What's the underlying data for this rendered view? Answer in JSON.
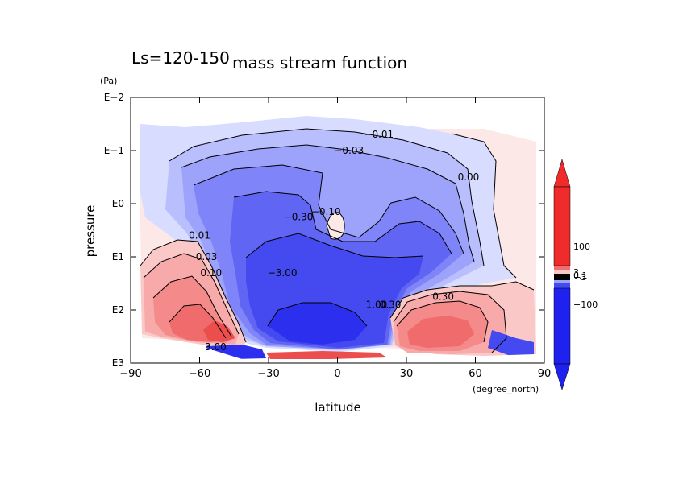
{
  "chart_data": {
    "type": "contour",
    "title": "mass stream function",
    "subtitle": "Ls=120-150",
    "xlabel": "latitude",
    "xunit": "(degree_north)",
    "ylabel": "pressure",
    "yunit": "(Pa)",
    "x_ticks": [
      "−90",
      "−60",
      "−30",
      "0",
      "30",
      "60",
      "90"
    ],
    "x_values": [
      -90,
      -60,
      -30,
      0,
      30,
      60,
      90
    ],
    "xlim": [
      -90,
      90
    ],
    "y_ticks": [
      "E−2",
      "E−1",
      "E0",
      "E1",
      "E2",
      "E3"
    ],
    "y_log10_values": [
      -2,
      -1,
      0,
      1,
      2,
      3
    ],
    "ylim_log10": [
      -2,
      3
    ],
    "y_reversed": true,
    "contour_labels": [
      {
        "text": "−0.01",
        "lat": 18,
        "log10p": -1.3
      },
      {
        "text": "−0.03",
        "lat": 5,
        "log10p": -1.0
      },
      {
        "text": "0.00",
        "lat": 57,
        "log10p": -0.5
      },
      {
        "text": "−0.10",
        "lat": -5,
        "log10p": 0.15
      },
      {
        "text": "−0.30",
        "lat": -17,
        "log10p": 0.25
      },
      {
        "text": "0.01",
        "lat": -60,
        "log10p": 0.6
      },
      {
        "text": "0.03",
        "lat": -57,
        "log10p": 1.0
      },
      {
        "text": "0.10",
        "lat": -55,
        "log10p": 1.3
      },
      {
        "text": "−3.00",
        "lat": -24,
        "log10p": 1.3
      },
      {
        "text": "1.00",
        "lat": 17,
        "log10p": 1.9
      },
      {
        "text": "0.30",
        "lat": 23,
        "log10p": 1.9
      },
      {
        "text": "0.30",
        "lat": 46,
        "log10p": 1.75
      },
      {
        "text": "3.00",
        "lat": -53,
        "log10p": 2.7
      }
    ],
    "colorbar": {
      "tick_labels": [
        "100",
        "3",
        "0.1",
        "−3",
        "−100"
      ],
      "positive_color": "#ef2b2b",
      "negative_color": "#1f22ee",
      "zero_color": "#ffeaea"
    },
    "colors": {
      "neg": [
        "#d8dcff",
        "#b9befd",
        "#9da2fb",
        "#7f84f8",
        "#6065f4",
        "#4449f0",
        "#2c30ee"
      ],
      "pos": [
        "#fde8e8",
        "#fbc8c8",
        "#f8a9a9",
        "#f48a8a",
        "#f06b6b",
        "#ec4d4d"
      ]
    }
  }
}
